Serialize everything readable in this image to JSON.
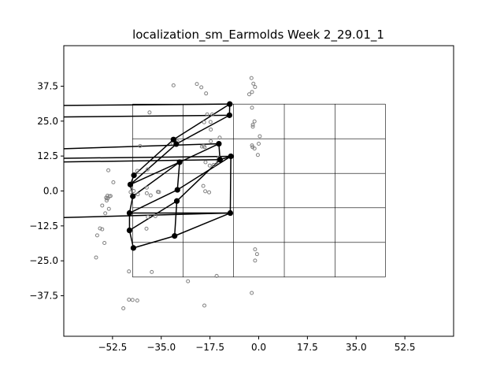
{
  "chart_data": {
    "type": "scatter",
    "title": "localization_sm_Earmolds Week 2_29.01_1",
    "xlabel": "",
    "ylabel": "",
    "xlim": [
      -70.0,
      70.0
    ],
    "ylim": [
      -52.0,
      52.0
    ],
    "xticks": [
      -52.5,
      -35.0,
      -17.5,
      0.0,
      17.5,
      35.0,
      52.5
    ],
    "yticks": [
      -37.5,
      -25.0,
      -12.5,
      0.0,
      12.5,
      25.0,
      37.5
    ],
    "xtick_labels": [
      "−52.5",
      "−35.0",
      "−17.5",
      "0.0",
      "17.5",
      "35.0",
      "52.5"
    ],
    "ytick_labels": [
      "−37.5",
      "−25.0",
      "−12.5",
      "0.0",
      "12.5",
      "25.0",
      "37.5"
    ],
    "colors": {
      "markers_open": "#808080",
      "polygon": "#000000",
      "grid": "#000000"
    },
    "grid_boxes": {
      "x": [
        -45.3,
        -27.1,
        -9.0,
        9.2,
        27.4,
        45.5
      ],
      "y": [
        -30.8,
        -18.4,
        -6.0,
        6.3,
        18.7,
        31.1
      ]
    },
    "open_points": [
      [
        -30.6,
        37.8
      ],
      [
        -22.2,
        38.3
      ],
      [
        -20.6,
        37.1
      ],
      [
        -18.9,
        34.9
      ],
      [
        -2.6,
        40.4
      ],
      [
        -1.9,
        38.4
      ],
      [
        -1.3,
        37.2
      ],
      [
        -2.4,
        35.4
      ],
      [
        -3.4,
        34.6
      ],
      [
        -39.2,
        28.1
      ],
      [
        -2.4,
        29.8
      ],
      [
        -17.2,
        22.0
      ],
      [
        -1.5,
        24.9
      ],
      [
        -2.1,
        23.7
      ],
      [
        -2.1,
        23.0
      ],
      [
        -19.6,
        24.6
      ],
      [
        -18.5,
        27.4
      ],
      [
        -17.3,
        24.7
      ],
      [
        -16.7,
        27.4
      ],
      [
        0.4,
        19.6
      ],
      [
        -14.0,
        19.1
      ],
      [
        -42.6,
        16.1
      ],
      [
        -29.2,
        17.7
      ],
      [
        -30.8,
        17.1
      ],
      [
        -20.4,
        15.9
      ],
      [
        -19.8,
        16.1
      ],
      [
        -19.4,
        15.7
      ],
      [
        -17.2,
        17.8
      ],
      [
        -2.4,
        16.3
      ],
      [
        -2.2,
        15.7
      ],
      [
        -1.5,
        15.2
      ],
      [
        0.0,
        16.9
      ],
      [
        -0.3,
        12.9
      ],
      [
        -14.4,
        11.9
      ],
      [
        -14.6,
        10.4
      ],
      [
        -16.2,
        9.3
      ],
      [
        -17.6,
        9.1
      ],
      [
        -19.1,
        10.3
      ],
      [
        -54.0,
        7.4
      ],
      [
        -39.9,
        7.7
      ],
      [
        -43.6,
        7.2
      ],
      [
        -52.2,
        3.1
      ],
      [
        -40.2,
        1.2
      ],
      [
        -19.9,
        1.8
      ],
      [
        -17.8,
        -0.5
      ],
      [
        -19.2,
        -0.1
      ],
      [
        -36.2,
        -0.3
      ],
      [
        -35.8,
        -0.4
      ],
      [
        -44.9,
        0.0
      ],
      [
        -46.0,
        -0.4
      ],
      [
        -43.4,
        -1.2
      ],
      [
        -38.8,
        -1.6
      ],
      [
        -40.2,
        -0.8
      ],
      [
        -53.6,
        -1.9
      ],
      [
        -54.3,
        -1.7
      ],
      [
        -53.2,
        -1.8
      ],
      [
        -54.8,
        -2.4
      ],
      [
        -54.2,
        -2.6
      ],
      [
        -54.4,
        -2.7
      ],
      [
        -54.6,
        -3.4
      ],
      [
        -53.8,
        -6.4
      ],
      [
        -56.2,
        -5.2
      ],
      [
        -55.1,
        -8.0
      ],
      [
        -37.1,
        -9.0
      ],
      [
        -39.8,
        -9.3
      ],
      [
        -57.0,
        -13.4
      ],
      [
        -56.2,
        -13.7
      ],
      [
        -40.3,
        -13.5
      ],
      [
        -58.0,
        -15.9
      ],
      [
        -55.4,
        -18.6
      ],
      [
        -1.3,
        -20.9
      ],
      [
        -0.6,
        -22.6
      ],
      [
        -1.3,
        -24.9
      ],
      [
        -58.4,
        -23.8
      ],
      [
        -46.6,
        -28.8
      ],
      [
        -38.4,
        -29.0
      ],
      [
        -15.1,
        -30.4
      ],
      [
        -25.4,
        -32.3
      ],
      [
        -2.5,
        -36.5
      ],
      [
        -46.6,
        -38.9
      ],
      [
        -45.3,
        -39.0
      ],
      [
        -43.6,
        -39.2
      ],
      [
        -19.5,
        -41.0
      ],
      [
        -48.6,
        -42.0
      ]
    ],
    "polygon_edges": [
      [
        [
          -70.0,
          30.6
        ],
        [
          -10.4,
          31.1
        ]
      ],
      [
        [
          -70.0,
          26.5
        ],
        [
          -10.5,
          27.1
        ]
      ],
      [
        [
          -70.0,
          15.1
        ],
        [
          -14.3,
          16.9
        ]
      ],
      [
        [
          -70.0,
          11.7
        ],
        [
          -10.0,
          12.4
        ]
      ],
      [
        [
          -70.0,
          10.4
        ],
        [
          -13.9,
          11.2
        ]
      ],
      [
        [
          -70.0,
          -9.5
        ],
        [
          -10.2,
          -7.9
        ]
      ],
      [
        [
          -10.4,
          31.1
        ],
        [
          -30.6,
          18.4
        ]
      ],
      [
        [
          -10.4,
          31.1
        ],
        [
          -10.5,
          27.1
        ]
      ],
      [
        [
          -10.5,
          27.1
        ],
        [
          -29.6,
          16.8
        ]
      ],
      [
        [
          -30.6,
          18.4
        ],
        [
          -29.6,
          16.8
        ]
      ],
      [
        [
          -30.6,
          18.4
        ],
        [
          -44.8,
          5.6
        ]
      ],
      [
        [
          -29.6,
          16.8
        ],
        [
          -46.1,
          2.3
        ]
      ],
      [
        [
          -44.8,
          5.6
        ],
        [
          -46.1,
          2.3
        ]
      ],
      [
        [
          -46.1,
          2.3
        ],
        [
          -45.2,
          -1.9
        ]
      ],
      [
        [
          -14.3,
          16.9
        ],
        [
          -13.9,
          11.2
        ]
      ],
      [
        [
          -14.3,
          16.9
        ],
        [
          -28.4,
          10.3
        ]
      ],
      [
        [
          -13.9,
          11.2
        ],
        [
          -10.0,
          12.4
        ]
      ],
      [
        [
          -10.0,
          12.4
        ],
        [
          -10.2,
          -7.9
        ]
      ],
      [
        [
          -10.0,
          12.4
        ],
        [
          -29.2,
          0.4
        ]
      ],
      [
        [
          -13.9,
          11.2
        ],
        [
          -29.4,
          -3.6
        ]
      ],
      [
        [
          -28.4,
          10.3
        ],
        [
          -29.2,
          0.4
        ]
      ],
      [
        [
          -28.4,
          10.3
        ],
        [
          -45.2,
          -1.9
        ]
      ],
      [
        [
          -29.2,
          0.4
        ],
        [
          -46.4,
          -7.9
        ]
      ],
      [
        [
          -29.4,
          -3.6
        ],
        [
          -46.4,
          -14.1
        ]
      ],
      [
        [
          -29.4,
          -3.6
        ],
        [
          -30.2,
          -16.1
        ]
      ],
      [
        [
          -45.2,
          -1.9
        ],
        [
          -46.4,
          -7.9
        ]
      ],
      [
        [
          -46.4,
          -7.9
        ],
        [
          -46.4,
          -14.1
        ]
      ],
      [
        [
          -46.4,
          -14.1
        ],
        [
          -45.0,
          -20.4
        ]
      ],
      [
        [
          -10.2,
          -7.9
        ],
        [
          -30.2,
          -16.1
        ]
      ],
      [
        [
          -10.2,
          -7.9
        ],
        [
          -46.4,
          -7.9
        ]
      ],
      [
        [
          -30.2,
          -16.1
        ],
        [
          -45.0,
          -20.4
        ]
      ],
      [
        [
          -46.1,
          2.3
        ],
        [
          -28.4,
          10.3
        ]
      ]
    ],
    "polygon_vertices": [
      [
        -10.4,
        31.1
      ],
      [
        -10.5,
        27.1
      ],
      [
        -30.6,
        18.4
      ],
      [
        -29.6,
        16.8
      ],
      [
        -14.3,
        16.9
      ],
      [
        -10.0,
        12.4
      ],
      [
        -13.9,
        11.2
      ],
      [
        -28.4,
        10.3
      ],
      [
        -44.8,
        5.6
      ],
      [
        -46.1,
        2.3
      ],
      [
        -45.2,
        -1.9
      ],
      [
        -29.2,
        0.4
      ],
      [
        -29.4,
        -3.6
      ],
      [
        -10.2,
        -7.9
      ],
      [
        -46.4,
        -7.9
      ],
      [
        -46.4,
        -14.1
      ],
      [
        -30.2,
        -16.1
      ],
      [
        -45.0,
        -20.4
      ]
    ]
  }
}
